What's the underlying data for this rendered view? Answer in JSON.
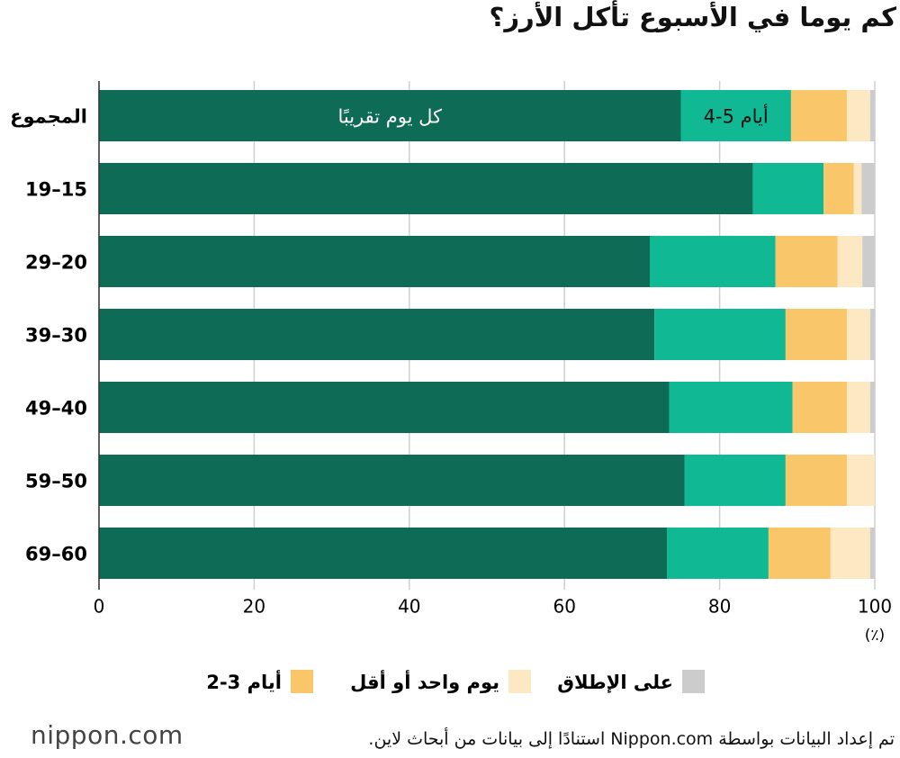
{
  "chart_data": {
    "type": "stacked-barh",
    "title": "كم يوما في الأسبوع تأكل الأرز؟",
    "categories": [
      "المجموع",
      "19–15",
      "29–20",
      "39–30",
      "49–40",
      "59–50",
      "69–60"
    ],
    "series": [
      {
        "name": "كل يوم تقريبًا",
        "color": "#0e6b55",
        "values": [
          75.0,
          84.3,
          71.0,
          71.6,
          73.5,
          75.5,
          73.2
        ]
      },
      {
        "name": "4-5 أيام",
        "color": "#10b893",
        "values": [
          14.2,
          9.1,
          16.2,
          16.9,
          15.9,
          13.0,
          13.1
        ]
      },
      {
        "name": "2-3 أيام",
        "color": "#f9c76a",
        "values": [
          7.2,
          3.9,
          8.0,
          7.9,
          7.0,
          7.9,
          8.0
        ]
      },
      {
        "name": "يوم واحد أو أقل",
        "color": "#fde8c4",
        "values": [
          3.0,
          1.0,
          3.2,
          3.0,
          3.0,
          3.6,
          5.1
        ]
      },
      {
        "name": "على الإطلاق",
        "color": "#cccccc",
        "values": [
          0.6,
          1.7,
          1.6,
          0.6,
          0.6,
          0.0,
          0.6
        ]
      }
    ],
    "xlim": [
      0,
      100
    ],
    "xticks": [
      0,
      20,
      40,
      60,
      80,
      100
    ],
    "x_unit": "(٪)",
    "grid": true,
    "source": "تم إعداد البيانات بواسطة Nippon.com استنادًا إلى بيانات من أبحاث لاين.",
    "logo": "nippon.com"
  }
}
